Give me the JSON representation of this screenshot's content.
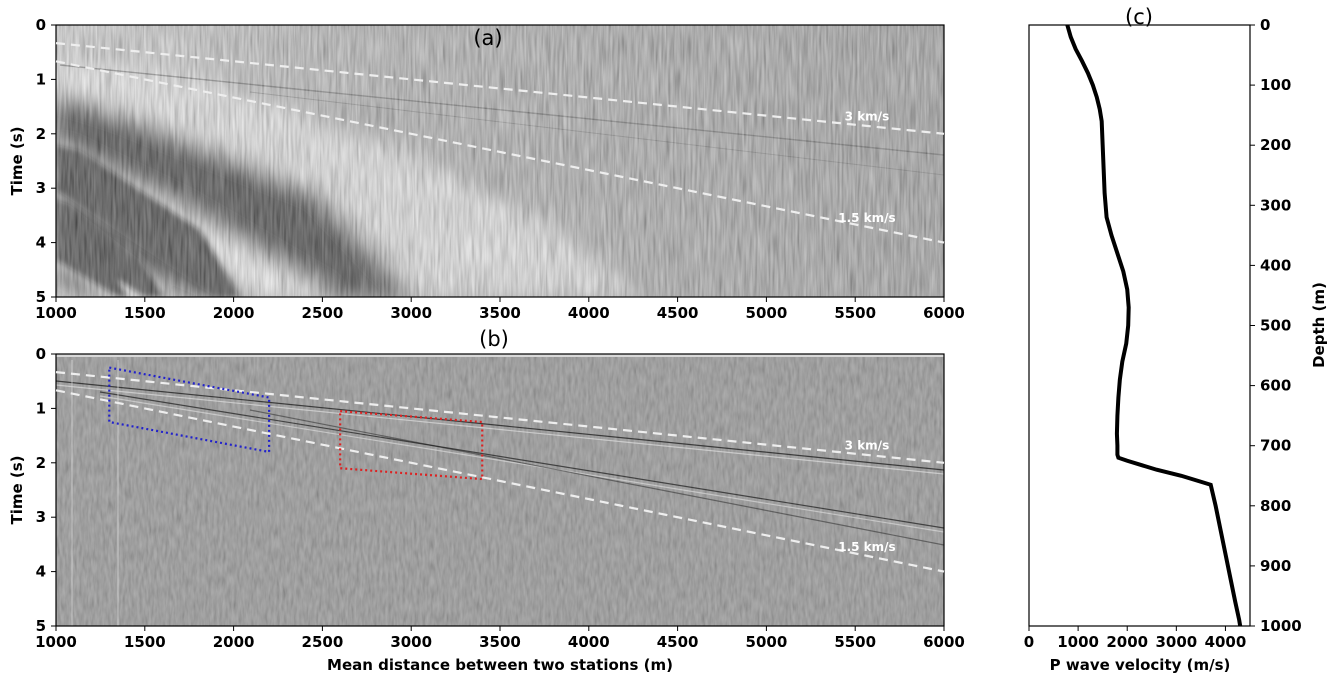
{
  "chart_data": [
    {
      "panel": "(a)",
      "type": "heatmap",
      "title": "(a)",
      "xlabel": "",
      "ylabel": "Time (s)",
      "xlim": [
        1000,
        6000
      ],
      "ylim": [
        5,
        0
      ],
      "x_ticks": [
        "1000",
        "1500",
        "2000",
        "2500",
        "3000",
        "3500",
        "4000",
        "4500",
        "5000",
        "5500",
        "6000"
      ],
      "y_ticks": [
        "0",
        "1",
        "2",
        "3",
        "4",
        "5"
      ],
      "colormap": "grayscale",
      "velocity_lines": [
        {
          "label": "3 km/s",
          "x": [
            1000,
            6000
          ],
          "y": [
            0.333,
            2.0
          ]
        },
        {
          "label": "1.5 km/s",
          "x": [
            1000,
            6000
          ],
          "y": [
            0.667,
            4.0
          ]
        }
      ]
    },
    {
      "panel": "(b)",
      "type": "heatmap",
      "title": "(b)",
      "xlabel": "Mean distance between two stations (m)",
      "ylabel": "Time (s)",
      "xlim": [
        1000,
        6000
      ],
      "ylim": [
        5,
        0
      ],
      "x_ticks": [
        "1000",
        "1500",
        "2000",
        "2500",
        "3000",
        "3500",
        "4000",
        "4500",
        "5000",
        "5500",
        "6000"
      ],
      "y_ticks": [
        "0",
        "1",
        "2",
        "3",
        "4",
        "5"
      ],
      "colormap": "grayscale",
      "velocity_lines": [
        {
          "label": "3 km/s",
          "x": [
            1000,
            6000
          ],
          "y": [
            0.333,
            2.0
          ]
        },
        {
          "label": "1.5 km/s",
          "x": [
            1000,
            6000
          ],
          "y": [
            0.667,
            4.0
          ]
        }
      ],
      "boxes": [
        {
          "color": "#2222cc",
          "corners": [
            [
              1300,
              0.25
            ],
            [
              2200,
              0.8
            ],
            [
              2200,
              1.8
            ],
            [
              1300,
              1.25
            ]
          ]
        },
        {
          "color": "#dd2222",
          "corners": [
            [
              2600,
              1.05
            ],
            [
              3400,
              1.25
            ],
            [
              3400,
              2.3
            ],
            [
              2600,
              2.1
            ]
          ]
        }
      ]
    },
    {
      "panel": "(c)",
      "type": "line",
      "title": "(c)",
      "xlabel": "P wave velocity (m/s)",
      "ylabel": "Depth (m)",
      "xlim": [
        0,
        4500
      ],
      "ylim": [
        1000,
        0
      ],
      "x_ticks": [
        "0",
        "1000",
        "2000",
        "3000",
        "4000"
      ],
      "y_ticks": [
        "0",
        "100",
        "200",
        "300",
        "400",
        "500",
        "600",
        "700",
        "800",
        "900",
        "1000"
      ],
      "series": [
        {
          "x": [
            780,
            850,
            950,
            1080,
            1200,
            1300,
            1380,
            1440,
            1480,
            1500,
            1520,
            1540,
            1580,
            1680,
            1800,
            1920,
            2000,
            2030,
            2020,
            1980,
            1900,
            1850,
            1820,
            1800,
            1790,
            1800,
            1800,
            1820,
            2000,
            2600,
            3100,
            3500,
            3700,
            3800,
            3900,
            4000,
            4100,
            4200,
            4280,
            4300
          ],
          "y": [
            0,
            20,
            40,
            60,
            80,
            100,
            120,
            140,
            160,
            200,
            240,
            280,
            320,
            350,
            380,
            410,
            440,
            470,
            500,
            530,
            560,
            590,
            620,
            650,
            680,
            700,
            715,
            720,
            725,
            740,
            750,
            760,
            765,
            800,
            840,
            880,
            920,
            960,
            990,
            1000
          ]
        }
      ]
    }
  ]
}
